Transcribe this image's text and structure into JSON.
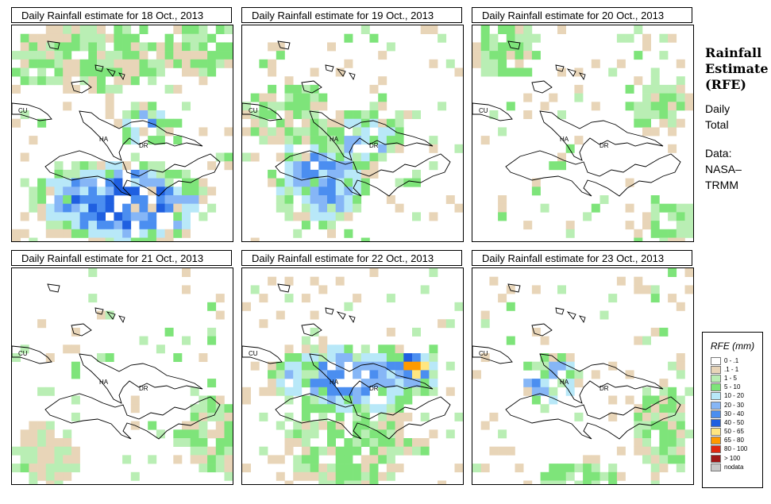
{
  "sidebar": {
    "title_line1": "Rainfall",
    "title_line2": "Estimate",
    "title_line3": "(RFE)",
    "desc_line1": "Daily",
    "desc_line2": "Total",
    "data_line1": "Data:",
    "data_line2": "NASA–",
    "data_line3": "TRMM"
  },
  "legend": {
    "title": "RFE (mm)",
    "items": [
      {
        "label": "0 - .1",
        "color": "#ffffff"
      },
      {
        "label": ".1 - 1",
        "color": "#e8d5b8"
      },
      {
        "label": "1 - 5",
        "color": "#b9eeb4"
      },
      {
        "label": "5 - 10",
        "color": "#7ee47a"
      },
      {
        "label": "10 - 20",
        "color": "#b8e8f8"
      },
      {
        "label": "20 - 30",
        "color": "#86b6f6"
      },
      {
        "label": "30 - 40",
        "color": "#4b8ef0"
      },
      {
        "label": "40 - 50",
        "color": "#1f5fe0"
      },
      {
        "label": "50 - 65",
        "color": "#ffe680"
      },
      {
        "label": "65 - 80",
        "color": "#ff9a00"
      },
      {
        "label": "80 - 100",
        "color": "#e02810"
      },
      {
        "label": "> 100",
        "color": "#a01818"
      },
      {
        "label": "nodata",
        "color": "#c8c8c8"
      }
    ]
  },
  "map_labels": {
    "cuba": "CU",
    "haiti": "HA",
    "dominican_republic": "DR"
  },
  "chart_data": {
    "type": "heatmap",
    "title": "Rainfall Estimate (RFE) Daily Total",
    "units": "mm",
    "source": "NASA–TRMM",
    "panels": [
      {
        "title": "Daily Rainfall estimate for  18 Oct., 2013",
        "date": "18 Oct., 2013",
        "seed": 18,
        "blobs": [
          {
            "cx": 0.5,
            "cy": 0.8,
            "rx": 0.42,
            "ry": 0.2,
            "level": 7
          },
          {
            "cx": 0.6,
            "cy": 0.45,
            "rx": 0.12,
            "ry": 0.1,
            "level": 6
          },
          {
            "cx": 0.35,
            "cy": 0.15,
            "rx": 0.4,
            "ry": 0.15,
            "level": 3
          },
          {
            "cx": 0.85,
            "cy": 0.1,
            "rx": 0.18,
            "ry": 0.12,
            "level": 3
          }
        ],
        "background_rate": 0.12
      },
      {
        "title": "Daily Rainfall estimate for  19 Oct., 2013",
        "date": "19 Oct., 2013",
        "seed": 19,
        "blobs": [
          {
            "cx": 0.35,
            "cy": 0.7,
            "rx": 0.22,
            "ry": 0.22,
            "level": 6
          },
          {
            "cx": 0.55,
            "cy": 0.5,
            "rx": 0.2,
            "ry": 0.12,
            "level": 5
          },
          {
            "cx": 0.2,
            "cy": 0.4,
            "rx": 0.2,
            "ry": 0.15,
            "level": 3
          }
        ],
        "background_rate": 0.12
      },
      {
        "title": "Daily Rainfall estimate for  20 Oct., 2013",
        "date": "20 Oct., 2013",
        "seed": 20,
        "blobs": [
          {
            "cx": 0.15,
            "cy": 0.1,
            "rx": 0.15,
            "ry": 0.15,
            "level": 3
          },
          {
            "cx": 0.85,
            "cy": 0.35,
            "rx": 0.14,
            "ry": 0.15,
            "level": 3
          },
          {
            "cx": 0.9,
            "cy": 0.9,
            "rx": 0.12,
            "ry": 0.1,
            "level": 3
          }
        ],
        "background_rate": 0.08
      },
      {
        "title": "Daily Rainfall estimate for  21 Oct., 2013",
        "date": "21 Oct., 2013",
        "seed": 21,
        "blobs": [
          {
            "cx": 0.9,
            "cy": 0.75,
            "rx": 0.12,
            "ry": 0.18,
            "level": 3
          },
          {
            "cx": 0.15,
            "cy": 0.85,
            "rx": 0.15,
            "ry": 0.15,
            "level": 2
          }
        ],
        "background_rate": 0.07
      },
      {
        "title": "Daily Rainfall estimate for  22 Oct., 2013",
        "date": "22 Oct., 2013",
        "seed": 22,
        "blobs": [
          {
            "cx": 0.5,
            "cy": 0.5,
            "rx": 0.4,
            "ry": 0.16,
            "level": 6
          },
          {
            "cx": 0.78,
            "cy": 0.45,
            "rx": 0.1,
            "ry": 0.08,
            "level": 9
          },
          {
            "cx": 0.48,
            "cy": 0.8,
            "rx": 0.28,
            "ry": 0.2,
            "level": 3
          }
        ],
        "background_rate": 0.13
      },
      {
        "title": "Daily Rainfall estimate for  23 Oct., 2013",
        "date": "23 Oct., 2013",
        "seed": 23,
        "blobs": [
          {
            "cx": 0.35,
            "cy": 0.5,
            "rx": 0.14,
            "ry": 0.12,
            "level": 6
          },
          {
            "cx": 0.85,
            "cy": 0.72,
            "rx": 0.12,
            "ry": 0.2,
            "level": 3
          },
          {
            "cx": 0.5,
            "cy": 0.95,
            "rx": 0.2,
            "ry": 0.08,
            "level": 3
          }
        ],
        "background_rate": 0.12
      }
    ]
  }
}
